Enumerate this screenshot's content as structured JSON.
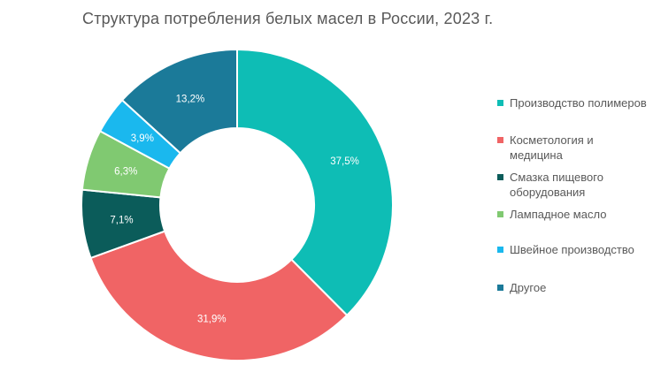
{
  "chart_data": {
    "type": "pie",
    "title": "Структура потребления белых масел в России, 2023 г.",
    "categories": [
      "Производство полимеров",
      "Косметология и медицина",
      "Смазка пищевого оборудования",
      "Лампадное масло",
      "Швейное производство",
      "Другое"
    ],
    "values": [
      37.5,
      31.9,
      7.1,
      6.3,
      3.9,
      13.2
    ],
    "data_labels": [
      "37,5%",
      "31,9%",
      "7,1%",
      "6,3%",
      "3,9%",
      "13,2%"
    ],
    "colors": [
      "#0ebdb5",
      "#f06465",
      "#0b5c5a",
      "#80c971",
      "#1ab8ee",
      "#1b7a99"
    ],
    "legend_position": "right",
    "label_color": "#ffffff"
  }
}
